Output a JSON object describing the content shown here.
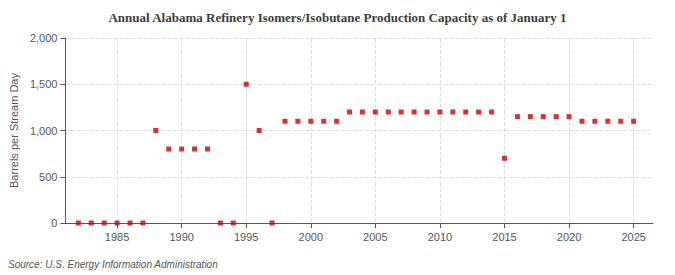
{
  "chart_data": {
    "type": "scatter",
    "title": "Annual Alabama Refinery Isomers/Isobutane Production Capacity as of January 1",
    "ylabel": "Barrels per Stream Day",
    "annotation": "Source: U.S. Energy Information Administration",
    "x": [
      1982,
      1983,
      1984,
      1985,
      1986,
      1987,
      1988,
      1989,
      1990,
      1991,
      1992,
      1993,
      1994,
      1995,
      1996,
      1997,
      1998,
      1999,
      2000,
      2001,
      2002,
      2003,
      2004,
      2005,
      2006,
      2007,
      2008,
      2009,
      2010,
      2011,
      2012,
      2013,
      2014,
      2015,
      2016,
      2017,
      2018,
      2019,
      2020,
      2021,
      2022,
      2023,
      2024,
      2025
    ],
    "values": [
      0,
      0,
      0,
      0,
      0,
      0,
      1000,
      800,
      800,
      800,
      800,
      0,
      0,
      1500,
      1000,
      0,
      1100,
      1100,
      1100,
      1100,
      1100,
      1200,
      1200,
      1200,
      1200,
      1200,
      1200,
      1200,
      1200,
      1200,
      1200,
      1200,
      1200,
      700,
      1150,
      1150,
      1150,
      1150,
      1150,
      1100,
      1100,
      1100,
      1100,
      1100
    ],
    "color": "#cc0000",
    "marker": "square",
    "xlim": [
      1981,
      2026.5
    ],
    "xticks": [
      1985,
      1990,
      1995,
      2000,
      2005,
      2010,
      2015,
      2020,
      2025
    ],
    "ylim": [
      0,
      2000
    ],
    "yticks": [
      0,
      500,
      {
        "value": 1000,
        "label": "1,000"
      },
      {
        "value": 1500,
        "label": "1,500"
      },
      {
        "value": 2000,
        "label": "2,000"
      }
    ],
    "grid": true
  }
}
